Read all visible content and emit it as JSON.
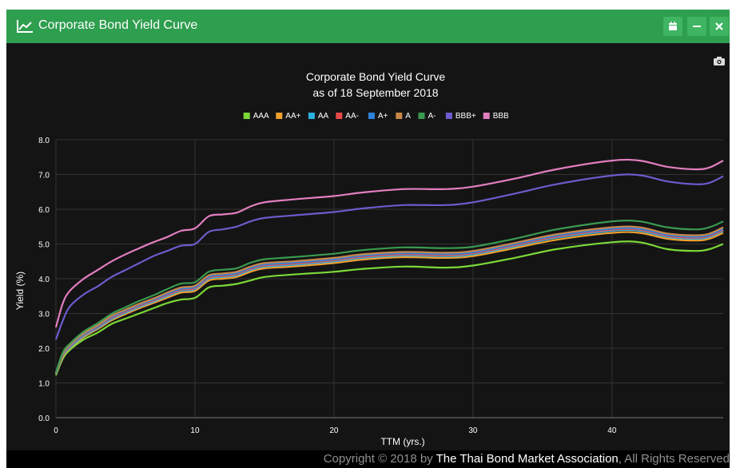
{
  "window": {
    "title": "Corporate Bond Yield Curve",
    "title_icon": "line-chart-icon",
    "buttons": [
      {
        "name": "calendar-button",
        "icon": "calendar-icon"
      },
      {
        "name": "minimize-button",
        "icon": "minus-icon",
        "glyph": "−"
      },
      {
        "name": "close-button",
        "icon": "close-icon",
        "glyph": "✖"
      }
    ],
    "export_icon": "camera-icon"
  },
  "chart_data": {
    "type": "line",
    "title": "Corporate Bond Yield Curve",
    "subtitle": "as of 18 September 2018",
    "xlabel": "TTM (yrs.)",
    "ylabel": "Yield (%)",
    "xlim": [
      0,
      48
    ],
    "ylim": [
      0,
      8
    ],
    "xticks": [
      0,
      10,
      20,
      30,
      40
    ],
    "yticks": [
      "0.0",
      "1.0",
      "2.0",
      "3.0",
      "4.0",
      "5.0",
      "6.0",
      "7.0",
      "8.0"
    ],
    "grid": true,
    "legend_position": "top-center",
    "x": [
      0,
      0.5,
      1,
      2,
      3,
      4,
      5,
      6,
      7,
      8,
      9,
      10,
      11,
      12,
      13,
      14,
      15,
      17,
      20,
      22,
      25,
      28,
      30,
      33,
      36,
      40,
      42,
      44,
      46,
      47,
      48
    ],
    "series": [
      {
        "name": "AAA",
        "color": "#7bd938",
        "values": [
          1.22,
          1.7,
          1.95,
          2.25,
          2.45,
          2.7,
          2.85,
          3.0,
          3.15,
          3.3,
          3.4,
          3.45,
          3.75,
          3.8,
          3.85,
          3.95,
          4.05,
          4.12,
          4.2,
          4.28,
          4.35,
          4.32,
          4.38,
          4.6,
          4.85,
          5.05,
          5.05,
          4.85,
          4.8,
          4.85,
          5.0
        ]
      },
      {
        "name": "AA+",
        "color": "#f0a030",
        "values": [
          1.25,
          1.75,
          2.0,
          2.32,
          2.55,
          2.8,
          2.98,
          3.15,
          3.3,
          3.45,
          3.6,
          3.65,
          3.95,
          4.0,
          4.05,
          4.2,
          4.3,
          4.35,
          4.45,
          4.55,
          4.62,
          4.6,
          4.65,
          4.88,
          5.12,
          5.32,
          5.32,
          5.15,
          5.1,
          5.15,
          5.32
        ]
      },
      {
        "name": "AA",
        "color": "#2ab0e0",
        "values": [
          1.26,
          1.78,
          2.02,
          2.35,
          2.58,
          2.84,
          3.02,
          3.19,
          3.34,
          3.5,
          3.65,
          3.7,
          4.0,
          4.05,
          4.1,
          4.25,
          4.35,
          4.4,
          4.5,
          4.6,
          4.67,
          4.65,
          4.7,
          4.93,
          5.18,
          5.38,
          5.38,
          5.2,
          5.15,
          5.2,
          5.38
        ]
      },
      {
        "name": "AA-",
        "color": "#e84a4a",
        "values": [
          1.27,
          1.8,
          2.05,
          2.38,
          2.61,
          2.87,
          3.05,
          3.22,
          3.37,
          3.53,
          3.68,
          3.73,
          4.03,
          4.08,
          4.13,
          4.28,
          4.38,
          4.43,
          4.53,
          4.63,
          4.7,
          4.68,
          4.73,
          4.96,
          5.21,
          5.41,
          5.41,
          5.23,
          5.18,
          5.23,
          5.41
        ]
      },
      {
        "name": "A+",
        "color": "#2f80d8",
        "values": [
          1.28,
          1.82,
          2.07,
          2.4,
          2.63,
          2.9,
          3.08,
          3.25,
          3.4,
          3.56,
          3.71,
          3.76,
          4.06,
          4.11,
          4.16,
          4.31,
          4.41,
          4.46,
          4.56,
          4.66,
          4.73,
          4.71,
          4.76,
          4.99,
          5.24,
          5.44,
          5.44,
          5.26,
          5.21,
          5.26,
          5.44
        ]
      },
      {
        "name": "A",
        "color": "#c8874a",
        "values": [
          1.29,
          1.84,
          2.09,
          2.43,
          2.66,
          2.93,
          3.11,
          3.28,
          3.43,
          3.6,
          3.75,
          3.8,
          4.1,
          4.15,
          4.2,
          4.35,
          4.45,
          4.5,
          4.6,
          4.7,
          4.77,
          4.75,
          4.8,
          5.03,
          5.28,
          5.48,
          5.48,
          5.3,
          5.25,
          5.3,
          5.48
        ]
      },
      {
        "name": "A-",
        "color": "#3a9a50",
        "values": [
          1.3,
          1.88,
          2.13,
          2.48,
          2.72,
          2.99,
          3.18,
          3.36,
          3.52,
          3.7,
          3.86,
          3.9,
          4.2,
          4.26,
          4.3,
          4.46,
          4.56,
          4.62,
          4.72,
          4.82,
          4.9,
          4.88,
          4.92,
          5.15,
          5.42,
          5.65,
          5.65,
          5.48,
          5.42,
          5.48,
          5.65
        ]
      },
      {
        "name": "BBB+",
        "color": "#6b5ccc",
        "values": [
          2.25,
          2.8,
          3.2,
          3.55,
          3.78,
          4.05,
          4.25,
          4.45,
          4.65,
          4.8,
          4.95,
          5.0,
          5.35,
          5.42,
          5.5,
          5.65,
          5.75,
          5.82,
          5.92,
          6.02,
          6.12,
          6.12,
          6.2,
          6.45,
          6.72,
          6.97,
          6.98,
          6.8,
          6.72,
          6.76,
          6.95
        ]
      },
      {
        "name": "BBB",
        "color": "#e27ec0",
        "values": [
          2.6,
          3.3,
          3.65,
          4.0,
          4.25,
          4.5,
          4.7,
          4.88,
          5.05,
          5.2,
          5.38,
          5.45,
          5.8,
          5.85,
          5.9,
          6.08,
          6.2,
          6.28,
          6.38,
          6.48,
          6.58,
          6.58,
          6.65,
          6.88,
          7.15,
          7.4,
          7.4,
          7.22,
          7.15,
          7.2,
          7.4
        ]
      }
    ]
  },
  "footer": {
    "prefix": "Copyright © 2018 by ",
    "org": "The Thai Bond Market Association",
    "suffix": ", All Rights Reserved"
  }
}
